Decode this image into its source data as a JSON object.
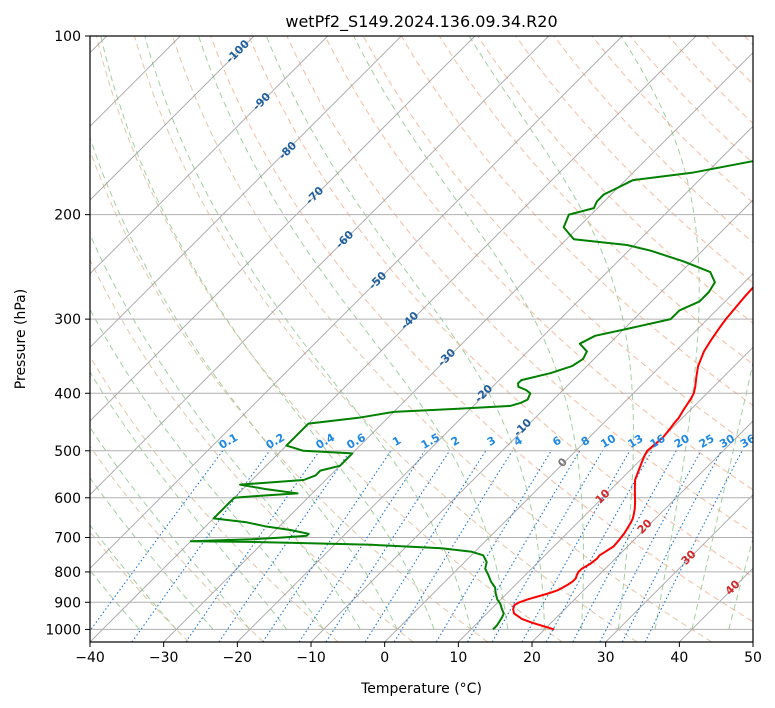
{
  "chart_data": {
    "type": "line",
    "title": "wetPf2_S149.2024.136.09.34.R20",
    "xlabel": "Temperature (°C)",
    "ylabel": "Pressure (hPa)",
    "xlim": [
      -40,
      50
    ],
    "ylim": [
      1050,
      100
    ],
    "y_scale": "log",
    "x_ticks": [
      -40,
      -30,
      -20,
      -10,
      0,
      10,
      20,
      30,
      40,
      50
    ],
    "y_ticks": [
      100,
      200,
      300,
      400,
      500,
      600,
      700,
      800,
      900,
      1000
    ],
    "grid": true,
    "colors": {
      "temperature": "#ff0000",
      "dewpoint": "#008000",
      "isotherm": "#999999",
      "dry_adiabat": "#f4a582",
      "moist_adiabat": "#8fc98f",
      "mixing_ratio": "#1f77d4",
      "grid": "#b0b0b0",
      "annot_dry": "#1f5f9f",
      "annot_mix": "#1e88e5",
      "annot_moist": "#d62728",
      "annot_zero": "#777777"
    },
    "series": [
      {
        "key": "temperature",
        "pressure": [
          1000,
          990,
          975,
          960,
          950,
          940,
          925,
          910,
          900,
          890,
          880,
          870,
          860,
          850,
          840,
          830,
          820,
          810,
          800,
          790,
          775,
          760,
          750,
          740,
          725,
          710,
          700,
          690,
          675,
          660,
          650,
          640,
          625,
          610,
          600,
          590,
          575,
          560,
          550,
          540,
          525,
          510,
          500,
          490,
          475,
          460,
          450,
          440,
          425,
          410,
          400,
          390,
          375,
          360,
          350,
          340,
          325,
          310,
          300,
          290,
          275,
          260,
          250,
          240,
          225,
          210,
          200,
          190,
          180,
          170,
          160,
          150,
          140,
          130,
          120,
          110,
          100
        ],
        "x_at_pressure": [
          21.3,
          19.8,
          17.5,
          15.5,
          14.6,
          13.7,
          13.0,
          12.6,
          12.9,
          13.6,
          14.6,
          15.6,
          16.4,
          16.8,
          17.1,
          17.3,
          17.3,
          17.0,
          16.8,
          16.8,
          17.3,
          17.5,
          17.4,
          17.7,
          18.1,
          18.0,
          17.9,
          17.8,
          17.5,
          17.2,
          16.9,
          16.5,
          15.8,
          15.0,
          14.4,
          13.8,
          12.9,
          12.0,
          11.6,
          11.2,
          10.6,
          10.0,
          9.7,
          9.8,
          10.0,
          9.8,
          9.6,
          9.5,
          9.0,
          8.6,
          8.2,
          7.5,
          6.3,
          5.1,
          4.5,
          3.9,
          3.3,
          2.8,
          2.5,
          2.3,
          2.0,
          1.8,
          2.0,
          2.8,
          4.8,
          7.2,
          8.7,
          9.5,
          9.6,
          9.4,
          8.8,
          8.2,
          7.5,
          7.0,
          7.2,
          8.0,
          9.0
        ]
      },
      {
        "key": "dewpoint",
        "pressure": [
          1000,
          985,
          970,
          955,
          940,
          925,
          905,
          890,
          870,
          850,
          830,
          810,
          790,
          770,
          750,
          740,
          730,
          720,
          715,
          712,
          710,
          705,
          700,
          695,
          690,
          680,
          670,
          660,
          650,
          640,
          630,
          620,
          610,
          605,
          600,
          595,
          590,
          580,
          570,
          560,
          550,
          540,
          530,
          520,
          510,
          505,
          500,
          495,
          490,
          480,
          470,
          460,
          450,
          440,
          430,
          425,
          420,
          415,
          410,
          400,
          395,
          390,
          385,
          380,
          370,
          360,
          350,
          340,
          330,
          320,
          310,
          300,
          290,
          280,
          270,
          260,
          250,
          240,
          230,
          225,
          220,
          215,
          210,
          200,
          195,
          190,
          185,
          180,
          175,
          170,
          160,
          150,
          140,
          130,
          120,
          110,
          100
        ],
        "x_at_pressure": [
          13.0,
          13.0,
          12.8,
          12.6,
          12.3,
          11.5,
          10.5,
          9.5,
          8.5,
          7.6,
          6.2,
          5.0,
          3.7,
          3.0,
          1.6,
          -0.4,
          -5.0,
          -15.0,
          -25.0,
          -32.0,
          -40.0,
          -32.0,
          -28.0,
          -25.0,
          -25.0,
          -28.0,
          -32.0,
          -35.0,
          -40.0,
          -40.0,
          -40.0,
          -40.0,
          -40.0,
          -40.0,
          -40.0,
          -36.5,
          -32.0,
          -37.0,
          -41.0,
          -33.0,
          -32.0,
          -32.0,
          -30.0,
          -30.0,
          -30.0,
          -30.0,
          -37.0,
          -38.5,
          -40.0,
          -40.0,
          -40.0,
          -40.0,
          -40.0,
          -34.0,
          -30.0,
          -22.0,
          -15.0,
          -14.0,
          -13.5,
          -14.0,
          -15.0,
          -16.5,
          -17.0,
          -17.0,
          -14.0,
          -12.0,
          -11.5,
          -12.0,
          -14.0,
          -13.0,
          -9.0,
          -5.0,
          -5.0,
          -3.5,
          -3.5,
          -4.0,
          -6.0,
          -11.0,
          -17.0,
          -21.0,
          -29.0,
          -30.5,
          -32.0,
          -33.0,
          -30.5,
          -31.0,
          -31.0,
          -30.0,
          -29.0,
          -22.0,
          -13.0,
          -10.0,
          -5.0,
          -3.0,
          -2.5,
          -2.0,
          -2.0
        ]
      }
    ],
    "dry_adiabat_labels": [
      "-100",
      "-90",
      "-80",
      "-70",
      "-60",
      "-50",
      "-40",
      "-30",
      "-20",
      "-10"
    ],
    "mixing_ratio_labels": [
      "0.1",
      "0.2",
      "0.4",
      "0.6",
      "1",
      "1.5",
      "2",
      "3",
      "4",
      "6",
      "8",
      "10",
      "13",
      "16",
      "20",
      "25",
      "30",
      "36"
    ],
    "moist_adiabat_labels": [
      "0",
      "10",
      "20",
      "30",
      "40"
    ]
  }
}
